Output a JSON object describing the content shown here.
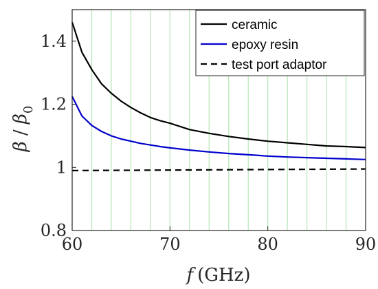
{
  "chart_data": {
    "type": "line",
    "x_label": {
      "var": "f",
      "unit": "(GHz)"
    },
    "y_label": {
      "beta": "β",
      "slash": " / ",
      "sub": "0"
    },
    "xlim": [
      60,
      90
    ],
    "ylim": [
      0.8,
      1.5
    ],
    "x_ticks": [
      60,
      70,
      80,
      90
    ],
    "x_tick_labels": [
      "60",
      "70",
      "80",
      "90"
    ],
    "y_ticks": [
      0.8,
      1.0,
      1.2,
      1.4
    ],
    "y_tick_labels": [
      "0.8",
      "1",
      "1.2",
      "1.4"
    ],
    "grid": {
      "x": true,
      "y": false,
      "x_step": 2,
      "color": "#b5e6b5"
    },
    "legend_position": "top-right",
    "series": [
      {
        "name": "ceramic",
        "color": "#000000",
        "dash": "solid",
        "x": [
          60,
          61,
          62,
          63,
          64,
          65,
          66,
          67,
          68,
          69,
          70,
          72,
          74,
          76,
          78,
          80,
          82,
          84,
          86,
          88,
          90
        ],
        "y": [
          1.46,
          1.365,
          1.31,
          1.265,
          1.235,
          1.21,
          1.19,
          1.173,
          1.158,
          1.148,
          1.14,
          1.12,
          1.108,
          1.098,
          1.09,
          1.083,
          1.078,
          1.073,
          1.068,
          1.066,
          1.063
        ]
      },
      {
        "name": "epoxy resin",
        "color": "#0000cc",
        "dash": "solid",
        "x": [
          60,
          61,
          62,
          63,
          64,
          65,
          66,
          67,
          68,
          69,
          70,
          72,
          74,
          76,
          78,
          80,
          82,
          84,
          86,
          88,
          90
        ],
        "y": [
          1.225,
          1.163,
          1.133,
          1.114,
          1.1,
          1.09,
          1.083,
          1.076,
          1.071,
          1.066,
          1.062,
          1.055,
          1.049,
          1.044,
          1.04,
          1.036,
          1.033,
          1.031,
          1.029,
          1.027,
          1.025
        ]
      },
      {
        "name": "test port adaptor",
        "color": "#000000",
        "dash": "dashed",
        "x": [
          60,
          90
        ],
        "y": [
          0.99,
          0.995
        ]
      }
    ]
  }
}
